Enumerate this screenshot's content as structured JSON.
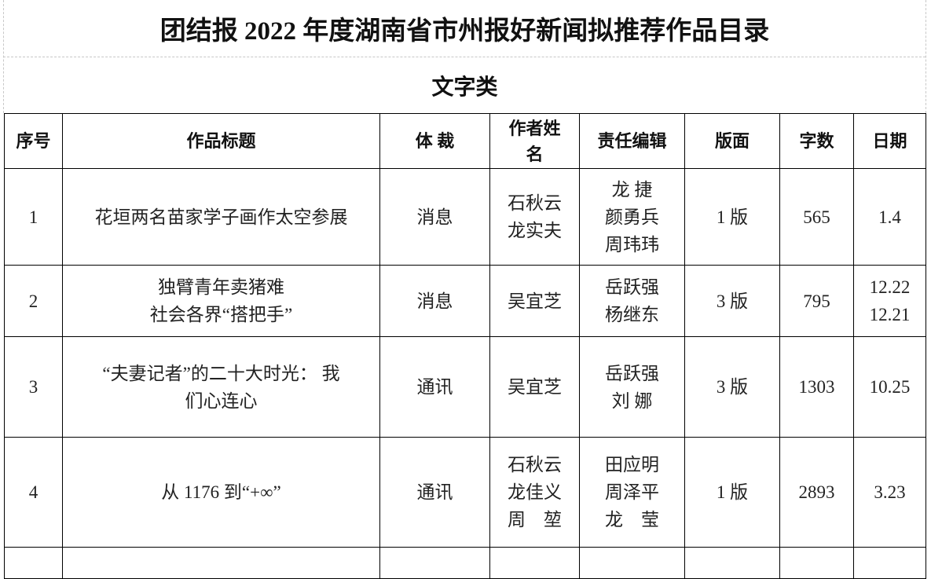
{
  "title": "团结报 2022 年度湖南省市州报好新闻拟推荐作品目录",
  "category": "文字类",
  "columns": [
    "序号",
    "作品标题",
    "体 裁",
    "作者姓名",
    "责任编辑",
    "版面",
    "字数",
    "日期"
  ],
  "rows": [
    {
      "no": "1",
      "title": "花垣两名苗家学子画作太空参展",
      "genre": "消息",
      "authors": "石秋云\n龙实夫",
      "editors": "龙 捷\n颜勇兵\n周玮玮",
      "page": "1 版",
      "words": "565",
      "date": "1.4"
    },
    {
      "no": "2",
      "title": "独臂青年卖猪难\n社会各界“搭把手”",
      "genre": "消息",
      "authors": "吴宜芝",
      "editors": "岳跃强\n杨继东",
      "page": "3 版",
      "words": "795",
      "date": "12.22\n12.21"
    },
    {
      "no": "3",
      "title": "“夫妻记者”的二十大时光： 我\n们心连心",
      "genre": "通讯",
      "authors": "吴宜芝",
      "editors": "岳跃强\n刘 娜",
      "page": "3 版",
      "words": "1303",
      "date": "10.25"
    },
    {
      "no": "4",
      "title": "从 1176 到“+∞”",
      "genre": "通讯",
      "authors": "石秋云\n龙佳义\n周　堃",
      "editors": "田应明\n周泽平\n龙　莹",
      "page": "1 版",
      "words": "2893",
      "date": "3.23"
    }
  ]
}
